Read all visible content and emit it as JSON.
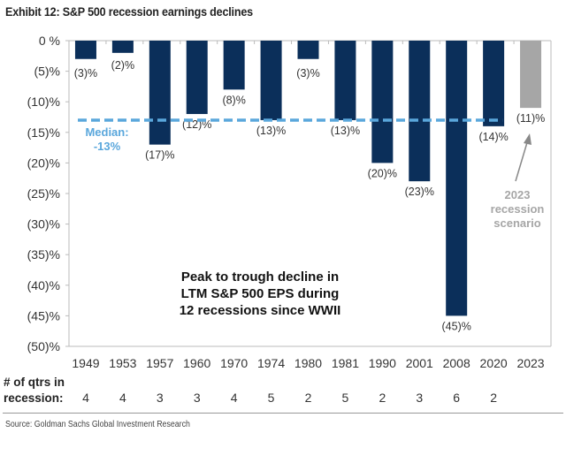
{
  "title": "Exhibit 12: S&P 500 recession earnings declines",
  "source": "Source: Goldman Sachs Global Investment Research",
  "chart_data": {
    "type": "bar",
    "categories": [
      "1949",
      "1953",
      "1957",
      "1960",
      "1970",
      "1974",
      "1980",
      "1981",
      "1990",
      "2001",
      "2008",
      "2020",
      "2023"
    ],
    "values": [
      -3,
      -2,
      -17,
      -12,
      -8,
      -13,
      -3,
      -13,
      -20,
      -23,
      -45,
      -14,
      -11
    ],
    "data_labels": [
      "(3)%",
      "(2)%",
      "(17)%",
      "(12)%",
      "(8)%",
      "(13)%",
      "(3)%",
      "(13)%",
      "(20)%",
      "(23)%",
      "(45)%",
      "(14)%",
      "(11)%"
    ],
    "bar_colors": [
      "#0b2f5a",
      "#0b2f5a",
      "#0b2f5a",
      "#0b2f5a",
      "#0b2f5a",
      "#0b2f5a",
      "#0b2f5a",
      "#0b2f5a",
      "#0b2f5a",
      "#0b2f5a",
      "#0b2f5a",
      "#0b2f5a",
      "#a6a6a6"
    ],
    "ylim": [
      -50,
      0
    ],
    "yticks": [
      0,
      -5,
      -10,
      -15,
      -20,
      -25,
      -30,
      -35,
      -40,
      -45,
      -50
    ],
    "ytick_labels": [
      "0 %",
      "(5)%",
      "(10)%",
      "(15)%",
      "(20)%",
      "(25)%",
      "(30)%",
      "(35)%",
      "(40)%",
      "(45)%",
      "(50)%"
    ],
    "grid": false,
    "median": {
      "value": -13,
      "label_line1": "Median:",
      "label_line2": "-13%",
      "color": "#5aa7dc"
    },
    "center_text": [
      "Peak to trough decline in",
      "LTM S&P 500 EPS during",
      "12 recessions since WWII"
    ],
    "annotation": {
      "lines": [
        "2023",
        "recession",
        "scenario"
      ],
      "color": "#a6a6a6"
    },
    "qtrs_label": [
      "# of qtrs in",
      "recession:"
    ],
    "qtrs_in_recession": [
      "4",
      "4",
      "3",
      "3",
      "4",
      "5",
      "2",
      "5",
      "2",
      "3",
      "6",
      "2",
      ""
    ]
  }
}
